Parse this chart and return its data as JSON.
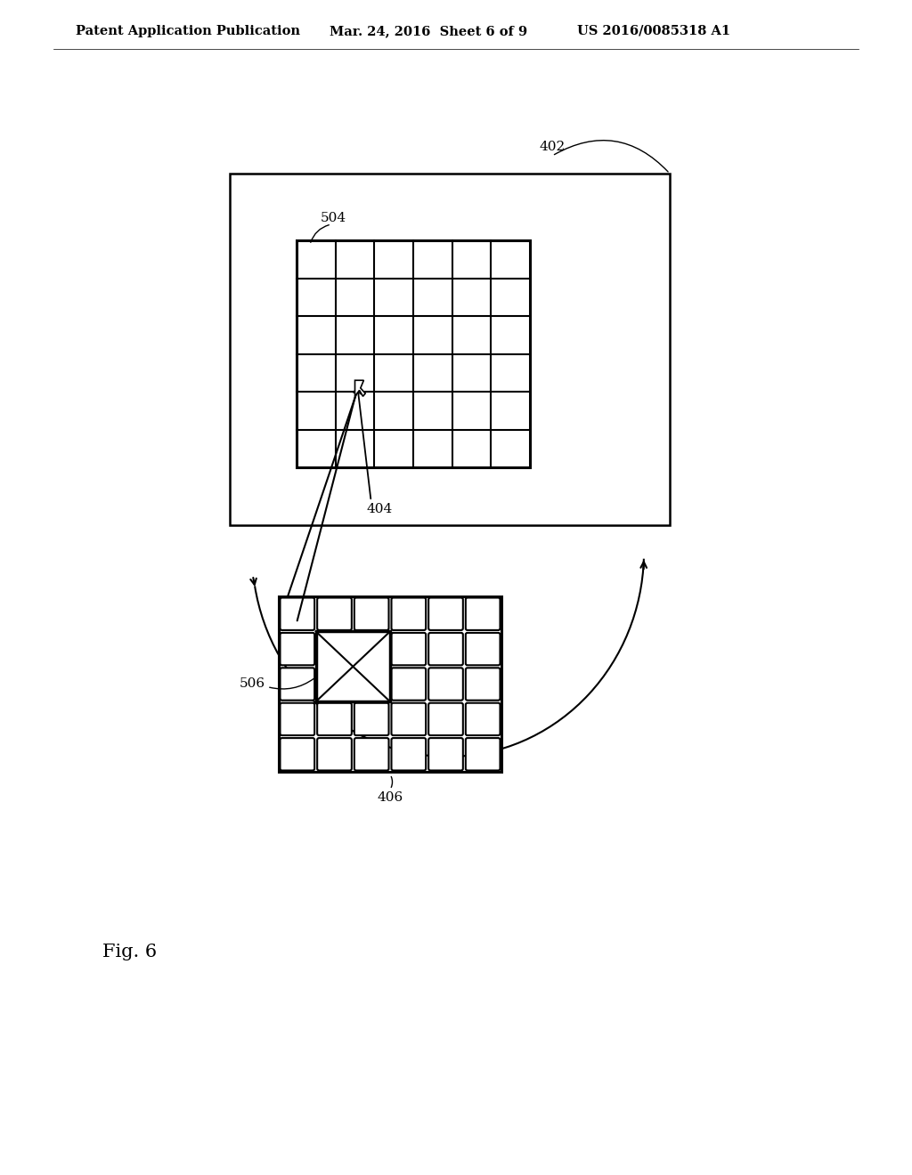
{
  "background_color": "#ffffff",
  "header_left": "Patent Application Publication",
  "header_center": "Mar. 24, 2016  Sheet 6 of 9",
  "header_right": "US 2016/0085318 A1",
  "header_fontsize": 10.5,
  "figure_label": "Fig. 6",
  "figure_label_fontsize": 15,
  "label_402": "402",
  "label_404": "404",
  "label_504": "504",
  "label_406": "406",
  "label_506": "506",
  "upper_grid_rows": 6,
  "upper_grid_cols": 6,
  "lower_grid_rows": 5,
  "lower_grid_cols": 6
}
